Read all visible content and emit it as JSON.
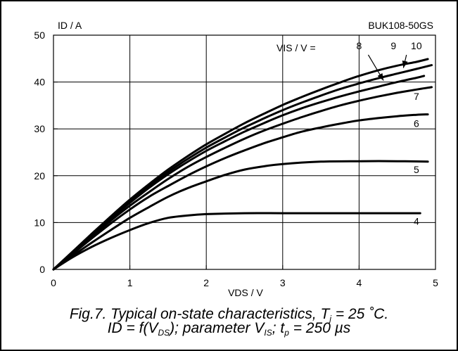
{
  "chart_data": {
    "type": "line",
    "ylabel": "ID / A",
    "xlabel": "VDS / V",
    "device": "BUK108-50GS",
    "parameter_label": "VIS / V =",
    "xlim": [
      0,
      5
    ],
    "ylim": [
      0,
      50
    ],
    "x_ticks": [
      "0",
      "1",
      "2",
      "3",
      "4",
      "5"
    ],
    "y_ticks": [
      "0",
      "10",
      "20",
      "30",
      "40",
      "50"
    ],
    "grid": true,
    "series": [
      {
        "name": "4",
        "x": [
          0,
          0.25,
          0.5,
          0.75,
          1.0,
          1.25,
          1.5,
          1.75,
          2.0,
          2.5,
          3.0,
          3.5,
          4.0,
          4.5,
          4.8
        ],
        "y": [
          0,
          2.6,
          4.8,
          6.7,
          8.4,
          9.9,
          11.0,
          11.5,
          11.8,
          12.0,
          12.0,
          12.0,
          12.0,
          12.0,
          12.0
        ]
      },
      {
        "name": "5",
        "x": [
          0,
          0.25,
          0.5,
          0.75,
          1.0,
          1.25,
          1.5,
          1.75,
          2.0,
          2.25,
          2.5,
          2.75,
          3.0,
          3.5,
          4.0,
          4.5,
          4.9
        ],
        "y": [
          0,
          2.9,
          5.7,
          8.4,
          11.0,
          13.3,
          15.5,
          17.3,
          18.8,
          20.2,
          21.3,
          22.0,
          22.5,
          23.0,
          23.1,
          23.1,
          23.0
        ]
      },
      {
        "name": "6",
        "x": [
          0,
          0.25,
          0.5,
          0.75,
          1.0,
          1.25,
          1.5,
          1.75,
          2.0,
          2.25,
          2.5,
          2.75,
          3.0,
          3.25,
          3.5,
          3.75,
          4.0,
          4.25,
          4.5,
          4.75,
          4.9
        ],
        "y": [
          0,
          3.3,
          6.6,
          9.8,
          12.8,
          15.5,
          17.8,
          20.0,
          22.0,
          23.8,
          25.4,
          26.9,
          28.2,
          29.4,
          30.3,
          31.1,
          31.8,
          32.3,
          32.7,
          33.0,
          33.1
        ]
      },
      {
        "name": "7",
        "x": [
          0,
          0.25,
          0.5,
          0.75,
          1.0,
          1.25,
          1.5,
          1.75,
          2.0,
          2.25,
          2.5,
          2.75,
          3.0,
          3.25,
          3.5,
          3.75,
          4.0,
          4.25,
          4.5,
          4.75,
          4.95
        ],
        "y": [
          0,
          3.5,
          7.0,
          10.4,
          13.6,
          16.5,
          19.3,
          21.8,
          24.0,
          26.0,
          27.9,
          29.6,
          31.1,
          32.5,
          33.8,
          35.0,
          36.0,
          36.9,
          37.7,
          38.4,
          38.9
        ]
      },
      {
        "name": "8",
        "x": [
          0,
          0.25,
          0.5,
          0.75,
          1.0,
          1.25,
          1.5,
          1.75,
          2.0,
          2.25,
          2.5,
          2.75,
          3.0,
          3.25,
          3.5,
          3.75,
          4.0,
          4.25,
          4.5,
          4.75,
          4.85
        ],
        "y": [
          0,
          3.6,
          7.2,
          10.8,
          14.2,
          17.4,
          20.3,
          22.9,
          25.3,
          27.4,
          29.4,
          31.2,
          32.9,
          34.4,
          35.7,
          36.9,
          38.0,
          39.0,
          40.0,
          40.9,
          41.3
        ]
      },
      {
        "name": "9",
        "x": [
          0,
          0.25,
          0.5,
          0.75,
          1.0,
          1.25,
          1.5,
          1.75,
          2.0,
          2.25,
          2.5,
          2.75,
          3.0,
          3.25,
          3.5,
          3.75,
          4.0,
          4.25,
          4.5,
          4.75,
          4.95
        ],
        "y": [
          0,
          3.7,
          7.4,
          11.1,
          14.6,
          17.8,
          20.8,
          23.5,
          26.0,
          28.2,
          30.3,
          32.2,
          34.0,
          35.6,
          37.1,
          38.5,
          39.7,
          40.8,
          41.8,
          42.8,
          43.6
        ]
      },
      {
        "name": "10",
        "x": [
          0,
          0.25,
          0.5,
          0.75,
          1.0,
          1.25,
          1.5,
          1.75,
          2.0,
          2.25,
          2.5,
          2.75,
          3.0,
          3.25,
          3.5,
          3.75,
          4.0,
          4.25,
          4.5,
          4.75,
          4.9
        ],
        "y": [
          0,
          3.8,
          7.6,
          11.3,
          14.9,
          18.2,
          21.3,
          24.1,
          26.7,
          29.0,
          31.2,
          33.2,
          35.1,
          36.8,
          38.4,
          39.9,
          41.3,
          42.5,
          43.5,
          44.3,
          44.9
        ]
      }
    ],
    "curve_labels": [
      {
        "text": "4",
        "x": 4.75,
        "y": 9.5
      },
      {
        "text": "5",
        "x": 4.75,
        "y": 20.6
      },
      {
        "text": "6",
        "x": 4.75,
        "y": 30.4
      },
      {
        "text": "7",
        "x": 4.75,
        "y": 36.2
      },
      {
        "text": "8",
        "x": 4.0,
        "y": 47.0
      },
      {
        "text": "9",
        "x": 4.45,
        "y": 47.0
      },
      {
        "text": "10",
        "x": 4.75,
        "y": 47.0
      }
    ],
    "arrows": [
      {
        "label": "8",
        "from": [
          4.12,
          45.8
        ],
        "to": [
          4.32,
          40.3
        ]
      },
      {
        "label": "10",
        "from": [
          4.62,
          45.8
        ],
        "to": [
          4.58,
          43.0
        ]
      }
    ]
  },
  "caption": {
    "line1_parts": [
      "Fig.7.   Typical on-state characteristics, T",
      "j",
      " = 25 ˚C."
    ],
    "line2_parts": [
      "ID = f(V",
      "DS",
      "); parameter V",
      "IS",
      "; t",
      "p",
      " = 250 µs"
    ]
  }
}
